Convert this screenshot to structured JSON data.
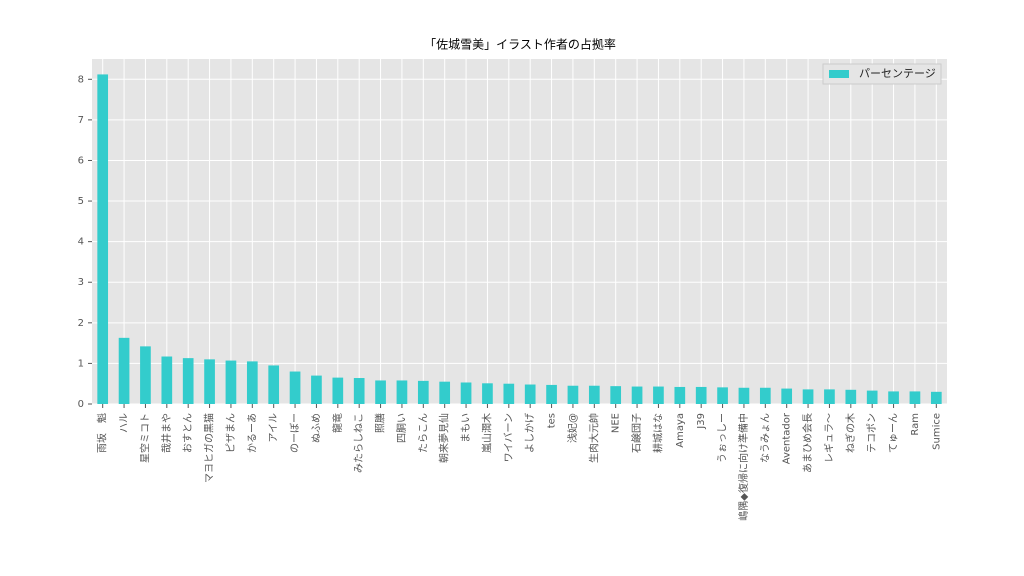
{
  "chart_data": {
    "type": "bar",
    "title": "「佐城雪美」イラスト作者の占拠率",
    "categories": [
      "雨坂　魁",
      "ハル",
      "星空ミコト",
      "哉井まや",
      "おすとん",
      "マヨヒガの黒猫",
      "ピザまん",
      "かるーあ",
      "アイル",
      "のーぼー",
      "ぬふめ",
      "龍竜",
      "みたらしねこ",
      "照膳",
      "四胴い",
      "たらこん",
      "朝来夢見仙",
      "まもい",
      "嵐山潤木",
      "ワイバーン",
      "よしかげ",
      "tes",
      "浅妃@",
      "生肉大元帥",
      "NEE",
      "石鹸団子",
      "耕城はな",
      "Amaya",
      "J39",
      "うぉっしー",
      "嶋隅◆復帰に向け準備中",
      "なうみょん",
      "Aventador",
      "あまひめ会長",
      "レギュラ～",
      "ねぎの木",
      "テコポン",
      "てゅーん",
      "Ram",
      "Sumice"
    ],
    "series": [
      {
        "name": "パーセンテージ",
        "color": "#33cccc",
        "values": [
          8.12,
          1.63,
          1.42,
          1.17,
          1.13,
          1.1,
          1.07,
          1.05,
          0.95,
          0.8,
          0.7,
          0.65,
          0.64,
          0.58,
          0.58,
          0.57,
          0.55,
          0.53,
          0.51,
          0.5,
          0.48,
          0.47,
          0.45,
          0.45,
          0.44,
          0.43,
          0.43,
          0.42,
          0.42,
          0.41,
          0.4,
          0.4,
          0.38,
          0.36,
          0.36,
          0.35,
          0.33,
          0.31,
          0.31,
          0.3
        ]
      }
    ],
    "ylim": [
      0,
      8.5
    ],
    "yticks": [
      0,
      1,
      2,
      3,
      4,
      5,
      6,
      7,
      8
    ],
    "grid": true,
    "legend": "upper right"
  }
}
